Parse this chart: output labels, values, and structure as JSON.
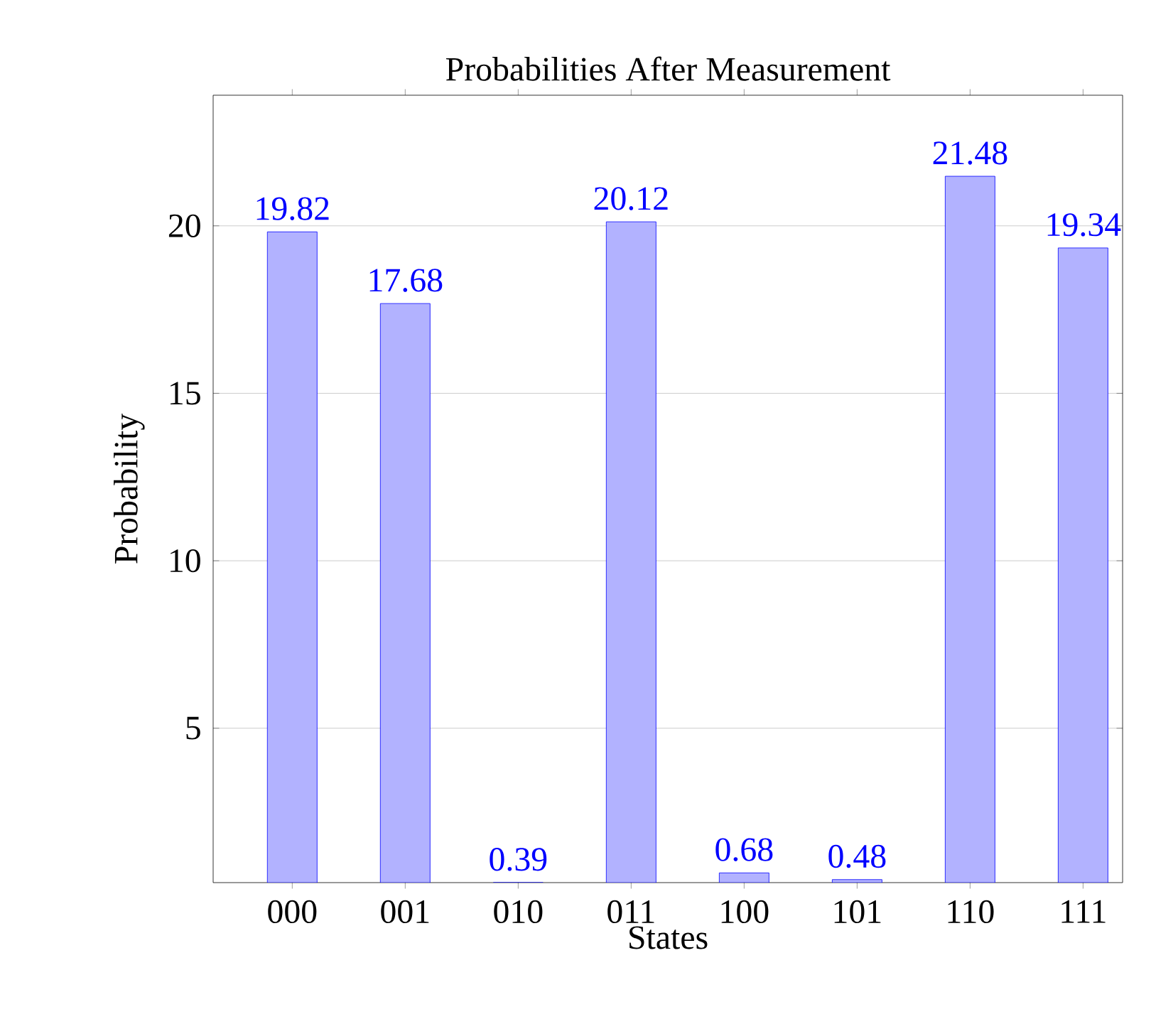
{
  "chart_data": {
    "type": "bar",
    "title": "Probabilities After Measurement",
    "xlabel": "States",
    "ylabel": "Probability",
    "categories": [
      "000",
      "001",
      "010",
      "011",
      "100",
      "101",
      "110",
      "111"
    ],
    "values": [
      19.82,
      17.68,
      0.39,
      20.12,
      0.68,
      0.48,
      21.48,
      19.34
    ],
    "color": "#b2b2ff",
    "ylim": [
      0.39,
      23.9
    ],
    "yticks": [
      5,
      10,
      15,
      20
    ],
    "grid": "y",
    "data_labels": true
  }
}
